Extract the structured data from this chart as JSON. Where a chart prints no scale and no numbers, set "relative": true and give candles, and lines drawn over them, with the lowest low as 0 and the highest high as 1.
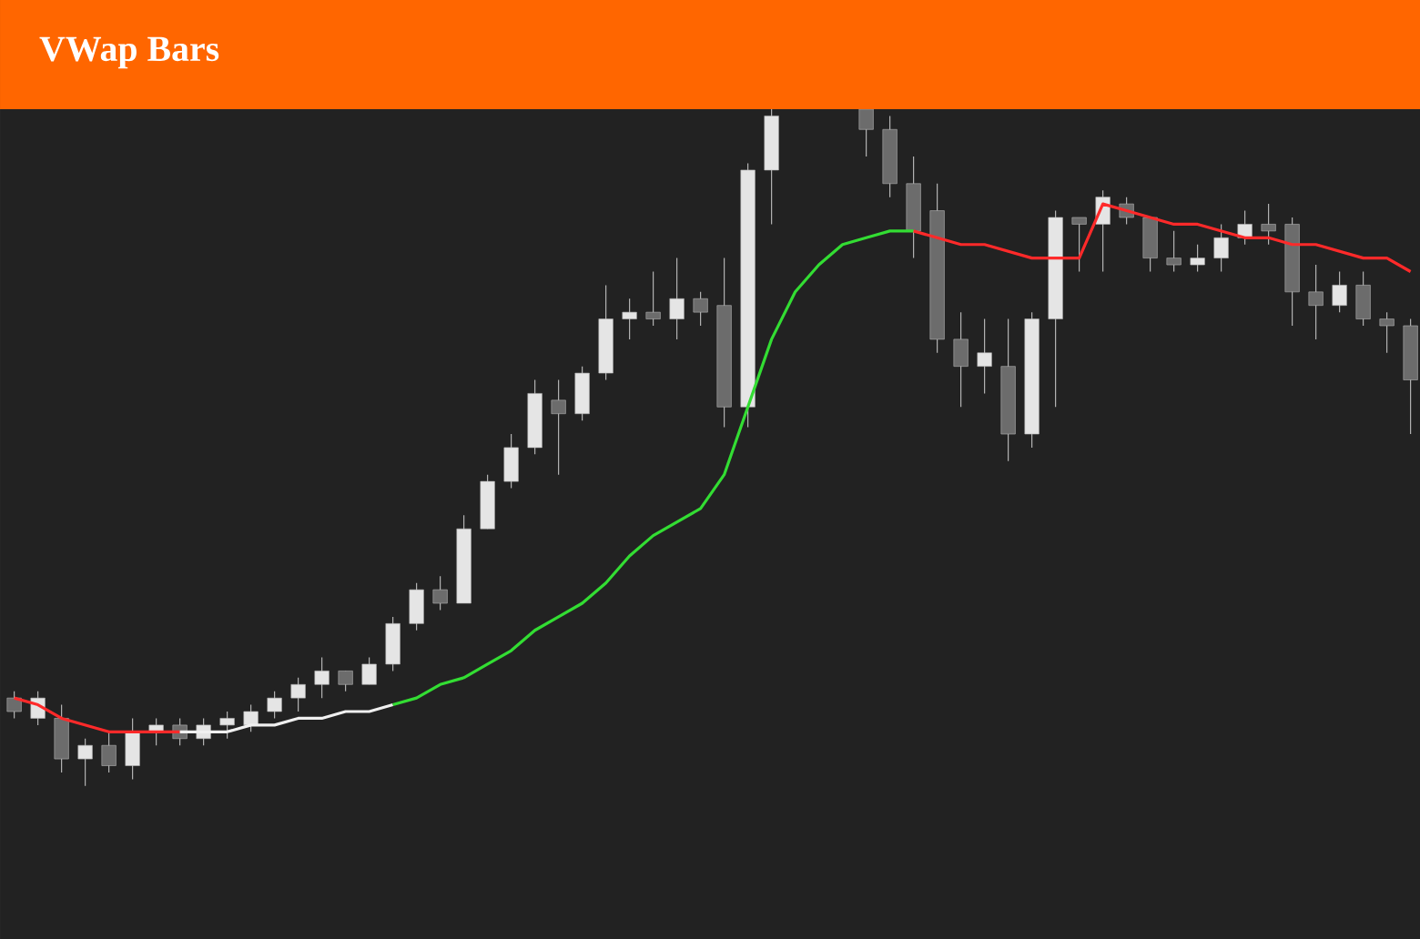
{
  "chart_data": {
    "type": "candlestick",
    "title": "VWap Bars",
    "relative": true,
    "color": "#b4b4b4",
    "categories": [
      null,
      null,
      null,
      null,
      null,
      null,
      null,
      null,
      null,
      null,
      null,
      null,
      null,
      null,
      null,
      null,
      null,
      null,
      null,
      null,
      null,
      null,
      null,
      null,
      null,
      null,
      null,
      null,
      null,
      null,
      null,
      null,
      null,
      null,
      null,
      null,
      null,
      null,
      null,
      null,
      null,
      null,
      null,
      null,
      null,
      null,
      null,
      null,
      null,
      null,
      null,
      null,
      null,
      null,
      null,
      null,
      null,
      null,
      null,
      null
    ],
    "ohlc": [
      [
        0.13,
        0.14,
        0.1,
        0.11
      ],
      [
        0.1,
        0.14,
        0.09,
        0.13
      ],
      [
        0.1,
        0.12,
        0.02,
        0.04
      ],
      [
        0.04,
        0.07,
        0,
        0.06
      ],
      [
        0.06,
        0.08,
        0.02,
        0.03
      ],
      [
        0.03,
        0.1,
        0.01,
        0.08
      ],
      [
        0.08,
        0.1,
        0.06,
        0.09
      ],
      [
        0.09,
        0.1,
        0.06,
        0.07
      ],
      [
        0.07,
        0.1,
        0.06,
        0.09
      ],
      [
        0.09,
        0.11,
        0.07,
        0.1
      ],
      [
        0.09,
        0.12,
        0.08,
        0.11
      ],
      [
        0.11,
        0.14,
        0.1,
        0.13
      ],
      [
        0.13,
        0.16,
        0.11,
        0.15
      ],
      [
        0.15,
        0.19,
        0.13,
        0.17
      ],
      [
        0.17,
        0.17,
        0.14,
        0.15
      ],
      [
        0.15,
        0.19,
        0.15,
        0.18
      ],
      [
        0.18,
        0.25,
        0.17,
        0.24
      ],
      [
        0.24,
        0.3,
        0.23,
        0.29
      ],
      [
        0.29,
        0.31,
        0.26,
        0.27
      ],
      [
        0.27,
        0.4,
        0.27,
        0.38
      ],
      [
        0.38,
        0.46,
        0.38,
        0.45
      ],
      [
        0.45,
        0.52,
        0.44,
        0.5
      ],
      [
        0.5,
        0.6,
        0.49,
        0.58
      ],
      [
        0.57,
        0.6,
        0.46,
        0.55
      ],
      [
        0.55,
        0.62,
        0.54,
        0.61
      ],
      [
        0.61,
        0.74,
        0.6,
        0.69
      ],
      [
        0.69,
        0.72,
        0.66,
        0.7
      ],
      [
        0.7,
        0.76,
        0.68,
        0.69
      ],
      [
        0.69,
        0.78,
        0.66,
        0.72
      ],
      [
        0.72,
        0.73,
        0.68,
        0.7
      ],
      [
        0.71,
        0.78,
        0.53,
        0.56
      ],
      [
        0.56,
        0.92,
        0.53,
        0.91
      ],
      [
        0.91,
        1,
        0.83,
        0.99
      ],
      null,
      null,
      null,
      [
        1,
        1,
        0.93,
        0.97
      ],
      [
        0.97,
        0.99,
        0.87,
        0.89
      ],
      [
        0.89,
        0.93,
        0.78,
        0.82
      ],
      [
        0.85,
        0.89,
        0.64,
        0.66
      ],
      [
        0.66,
        0.7,
        0.56,
        0.62
      ],
      [
        0.62,
        0.69,
        0.58,
        0.64
      ],
      [
        0.62,
        0.69,
        0.48,
        0.52
      ],
      [
        0.52,
        0.7,
        0.5,
        0.69
      ],
      [
        0.69,
        0.85,
        0.56,
        0.84
      ],
      [
        0.84,
        0.84,
        0.76,
        0.83
      ],
      [
        0.83,
        0.88,
        0.76,
        0.87
      ],
      [
        0.86,
        0.87,
        0.83,
        0.84
      ],
      [
        0.84,
        0.84,
        0.76,
        0.78
      ],
      [
        0.78,
        0.82,
        0.76,
        0.77
      ],
      [
        0.77,
        0.8,
        0.76,
        0.78
      ],
      [
        0.78,
        0.83,
        0.76,
        0.81
      ],
      [
        0.81,
        0.85,
        0.8,
        0.83
      ],
      [
        0.83,
        0.86,
        0.8,
        0.82
      ],
      [
        0.83,
        0.84,
        0.68,
        0.73
      ],
      [
        0.73,
        0.77,
        0.66,
        0.71
      ],
      [
        0.71,
        0.76,
        0.7,
        0.74
      ],
      [
        0.74,
        0.76,
        0.68,
        0.69
      ],
      [
        0.69,
        0.7,
        0.64,
        0.68
      ],
      [
        0.68,
        0.69,
        0.52,
        0.6
      ]
    ],
    "series": [
      {
        "type": "line",
        "color": "#ff2a2a",
        "values": [
          0.13,
          0.12,
          0.1,
          0.09,
          0.08,
          0.08,
          0.08,
          0.08,
          null,
          null,
          null,
          null,
          null,
          null,
          null,
          null,
          null,
          null,
          null,
          null,
          null,
          null,
          null,
          null,
          null,
          null,
          null,
          null,
          null,
          null,
          null,
          null,
          null,
          null,
          null,
          null,
          null,
          null,
          null,
          null,
          null,
          null,
          null,
          null,
          null,
          null,
          null,
          null,
          null,
          null,
          null,
          null,
          null,
          null,
          null,
          null,
          null,
          null,
          null,
          null
        ]
      },
      {
        "type": "line",
        "color": "#f0f0f0",
        "values": [
          null,
          null,
          null,
          null,
          null,
          null,
          null,
          0.08,
          0.08,
          0.08,
          0.09,
          0.09,
          0.1,
          0.1,
          0.11,
          0.11,
          0.12,
          null,
          null,
          null,
          null,
          null,
          null,
          null,
          null,
          null,
          null,
          null,
          null,
          null,
          null,
          null,
          null,
          null,
          null,
          null,
          null,
          null,
          null,
          null,
          null,
          null,
          null,
          null,
          null,
          null,
          null,
          null,
          null,
          null,
          null,
          null,
          null,
          null,
          null,
          null,
          null,
          null,
          null,
          null
        ]
      },
      {
        "type": "line",
        "color": "#33dd33",
        "values": [
          null,
          null,
          null,
          null,
          null,
          null,
          null,
          null,
          null,
          null,
          null,
          null,
          null,
          null,
          null,
          null,
          0.12,
          0.13,
          0.15,
          0.16,
          0.18,
          0.2,
          0.23,
          0.25,
          0.27,
          0.3,
          0.34,
          0.37,
          0.39,
          0.41,
          0.46,
          0.56,
          0.66,
          0.73,
          0.77,
          0.8,
          0.81,
          0.82,
          0.82,
          null,
          null,
          null,
          null,
          null,
          null,
          null,
          null,
          null,
          null,
          null,
          null,
          null,
          null,
          null,
          null,
          null,
          null,
          null,
          null,
          null
        ]
      },
      {
        "type": "line",
        "color": "#ff2a2a",
        "values": [
          null,
          null,
          null,
          null,
          null,
          null,
          null,
          null,
          null,
          null,
          null,
          null,
          null,
          null,
          null,
          null,
          null,
          null,
          null,
          null,
          null,
          null,
          null,
          null,
          null,
          null,
          null,
          null,
          null,
          null,
          null,
          null,
          null,
          null,
          null,
          null,
          null,
          null,
          0.82,
          0.81,
          0.8,
          0.8,
          0.79,
          0.78,
          0.78,
          0.78,
          0.86,
          0.85,
          0.84,
          0.83,
          0.83,
          0.82,
          0.81,
          0.81,
          0.8,
          0.8,
          0.79,
          0.78,
          0.78,
          0.76
        ]
      }
    ]
  }
}
